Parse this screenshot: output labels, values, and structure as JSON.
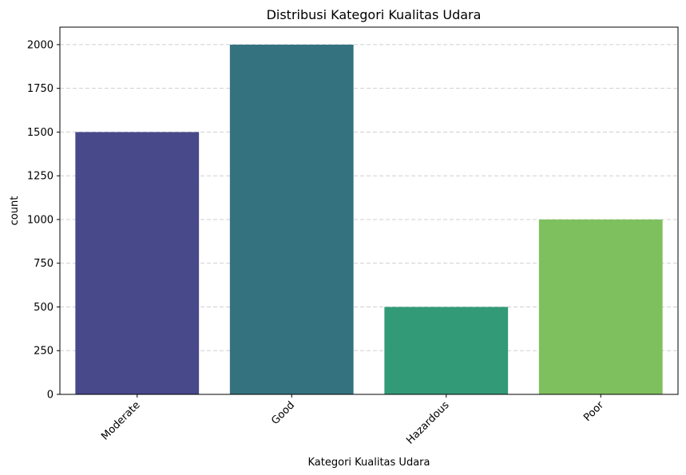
{
  "chart_data": {
    "type": "bar",
    "title": "Distribusi Kategori Kualitas Udara",
    "xlabel": "Kategori Kualitas Udara",
    "ylabel": "count",
    "categories": [
      "Moderate",
      "Good",
      "Hazardous",
      "Poor"
    ],
    "values": [
      1500,
      2000,
      500,
      1000
    ],
    "colors": [
      "#48498a",
      "#35727f",
      "#339a78",
      "#7fc05e"
    ],
    "ylim": [
      0,
      2100
    ],
    "yticks": [
      0,
      250,
      500,
      750,
      1000,
      1250,
      1500,
      1750,
      2000
    ],
    "grid": "y-dashed",
    "xtick_rotation": 45
  }
}
